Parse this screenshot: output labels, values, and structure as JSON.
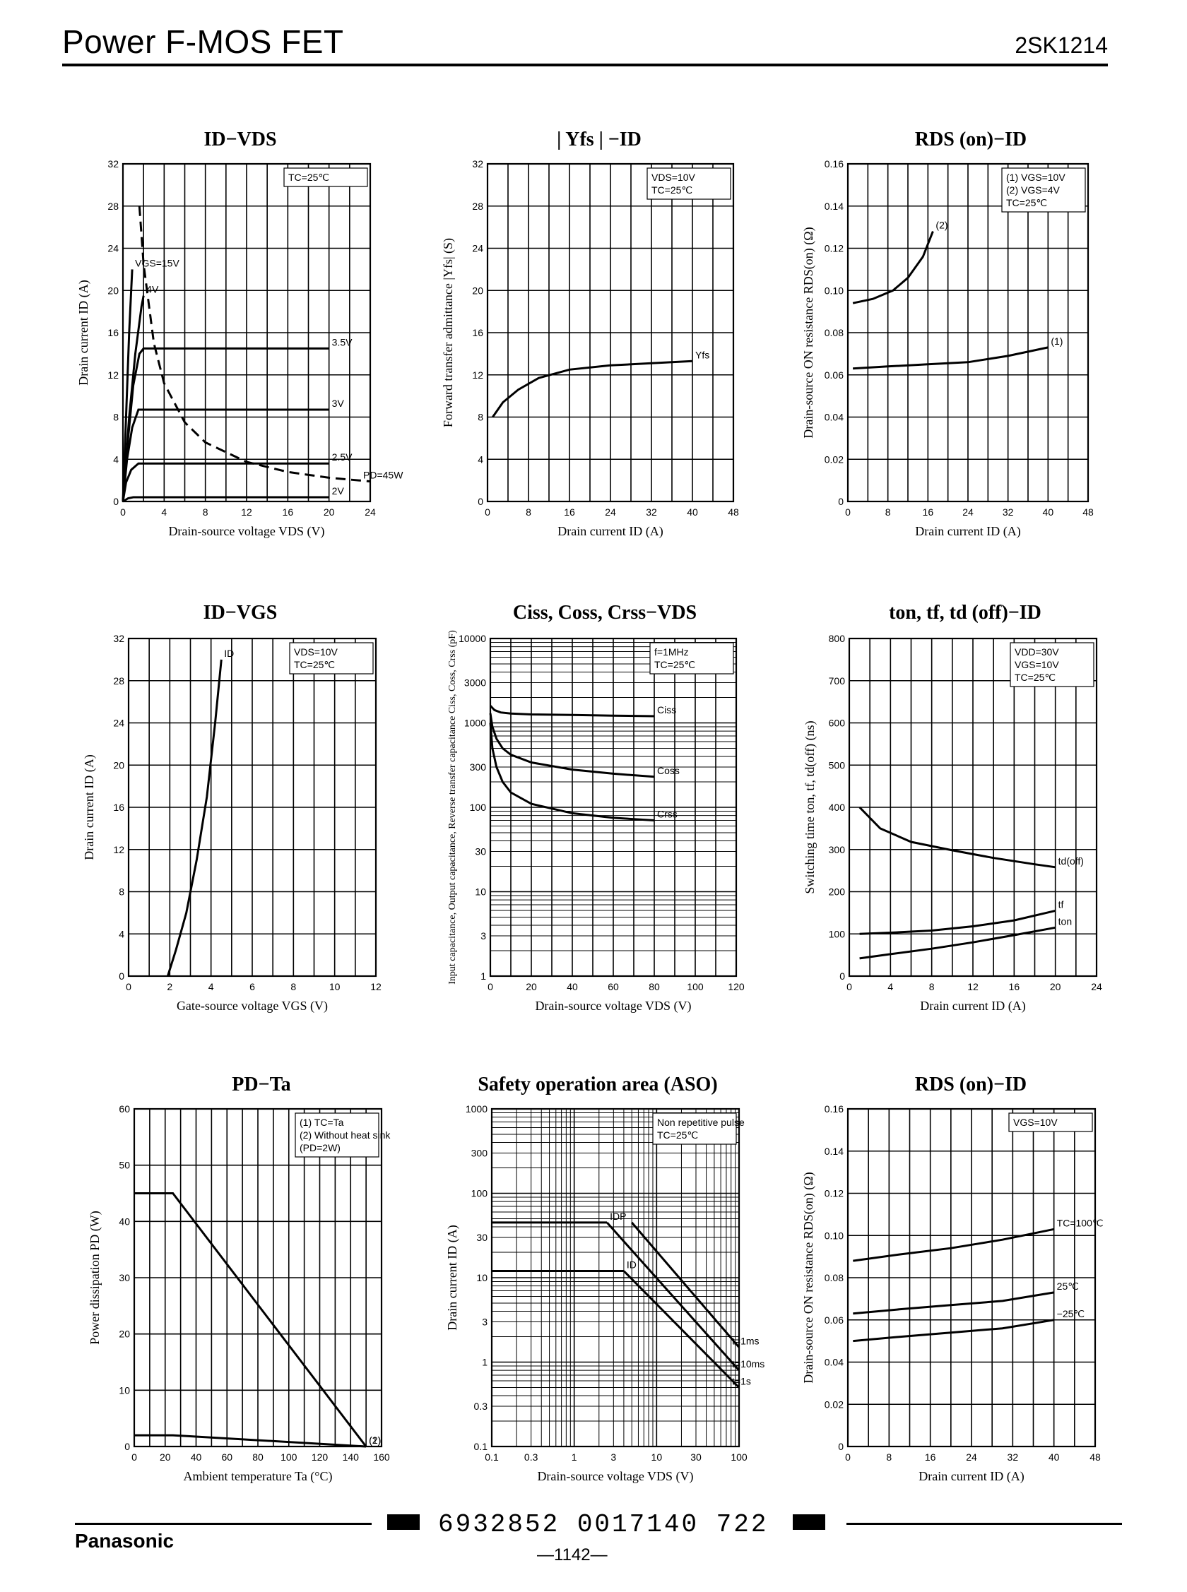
{
  "header": {
    "title": "Power F-MOS FET",
    "part_number": "2SK1214"
  },
  "footer": {
    "brand": "Panasonic",
    "code": "6932852 0017140 722",
    "page": "—1142—"
  },
  "chart_data": [
    {
      "id": "c1",
      "type": "line",
      "title": "ID−VDS",
      "xlabel": "Drain-source voltage VDS (V)",
      "ylabel": "Drain current ID (A)",
      "xlim": [
        0,
        24
      ],
      "ylim": [
        0,
        32
      ],
      "xticks": [
        "0",
        "4",
        "8",
        "12",
        "16",
        "20",
        "24"
      ],
      "yticks": [
        "0",
        "4",
        "8",
        "12",
        "16",
        "20",
        "24",
        "28",
        "32"
      ],
      "legend": [
        "TC=25℃"
      ],
      "series": [
        {
          "name": "VGS=15V",
          "x": [
            0,
            0.3,
            0.6,
            0.9
          ],
          "y": [
            0,
            8,
            16,
            22
          ]
        },
        {
          "name": "4V",
          "x": [
            0,
            0.6,
            1.2,
            1.8,
            2.0
          ],
          "y": [
            0,
            8,
            14,
            18.5,
            19.5
          ]
        },
        {
          "name": "3.5V",
          "x": [
            0,
            0.5,
            1,
            1.6,
            2,
            20
          ],
          "y": [
            0,
            6,
            11,
            14,
            14.5,
            14.5
          ]
        },
        {
          "name": "3V",
          "x": [
            0,
            0.4,
            0.9,
            1.5,
            20
          ],
          "y": [
            0,
            4,
            7,
            8.7,
            8.7
          ]
        },
        {
          "name": "2.5V",
          "x": [
            0,
            0.3,
            0.8,
            1.5,
            20
          ],
          "y": [
            0,
            1.8,
            3,
            3.6,
            3.6
          ]
        },
        {
          "name": "2V",
          "x": [
            0,
            0.5,
            1,
            20
          ],
          "y": [
            0,
            0.3,
            0.4,
            0.4
          ]
        },
        {
          "name": "PD=45W",
          "x": [
            1.6,
            2,
            3,
            4,
            6,
            8,
            12,
            16,
            20,
            24
          ],
          "y": [
            28,
            22.5,
            15,
            11.2,
            7.5,
            5.6,
            3.75,
            2.8,
            2.25,
            1.9
          ]
        }
      ]
    },
    {
      "id": "c2",
      "type": "line",
      "title": "| Yfs | −ID",
      "xlabel": "Drain current ID (A)",
      "ylabel": "Forward transfer admittance |Yfs| (S)",
      "xlim": [
        0,
        48
      ],
      "ylim": [
        0,
        32
      ],
      "xticks": [
        "0",
        "8",
        "16",
        "24",
        "32",
        "40",
        "48"
      ],
      "yticks": [
        "0",
        "4",
        "8",
        "12",
        "16",
        "20",
        "24",
        "28",
        "32"
      ],
      "legend": [
        "VDS=10V",
        "TC=25℃"
      ],
      "series": [
        {
          "name": "Yfs",
          "x": [
            1,
            3,
            6,
            10,
            16,
            24,
            32,
            40
          ],
          "y": [
            8,
            9.4,
            10.6,
            11.7,
            12.5,
            12.9,
            13.1,
            13.3
          ]
        }
      ]
    },
    {
      "id": "c3",
      "type": "line",
      "title": "RDS (on)−ID",
      "xlabel": "Drain current ID (A)",
      "ylabel": "Drain-source ON resistance RDS(on) (Ω)",
      "xlim": [
        0,
        48
      ],
      "ylim": [
        0,
        0.16
      ],
      "xticks": [
        "0",
        "8",
        "16",
        "24",
        "32",
        "40",
        "48"
      ],
      "yticks": [
        "0",
        "0.02",
        "0.04",
        "0.06",
        "0.08",
        "0.10",
        "0.12",
        "0.14",
        "0.16"
      ],
      "legend": [
        "(1) VGS=10V",
        "(2) VGS=4V",
        "TC=25℃"
      ],
      "series": [
        {
          "name": "(1)",
          "x": [
            1,
            8,
            16,
            24,
            32,
            40
          ],
          "y": [
            0.063,
            0.064,
            0.065,
            0.066,
            0.069,
            0.073
          ]
        },
        {
          "name": "(2)",
          "x": [
            1,
            5,
            9,
            12,
            15,
            17
          ],
          "y": [
            0.094,
            0.096,
            0.1,
            0.106,
            0.116,
            0.128
          ]
        }
      ]
    },
    {
      "id": "c4",
      "type": "line",
      "title": "ID−VGS",
      "xlabel": "Gate-source voltage VGS (V)",
      "ylabel": "Drain current ID (A)",
      "xlim": [
        0,
        12
      ],
      "ylim": [
        0,
        32
      ],
      "xticks": [
        "0",
        "2",
        "4",
        "6",
        "8",
        "10",
        "12"
      ],
      "yticks": [
        "0",
        "4",
        "8",
        "12",
        "16",
        "20",
        "24",
        "28",
        "32"
      ],
      "legend": [
        "VDS=10V",
        "TC=25℃"
      ],
      "series": [
        {
          "name": "ID",
          "x": [
            1.9,
            2.3,
            2.8,
            3.3,
            3.8,
            4.2,
            4.5
          ],
          "y": [
            0,
            2.5,
            6,
            11,
            17,
            24,
            30
          ]
        }
      ]
    },
    {
      "id": "c5",
      "type": "line",
      "title": "Ciss, Coss, Crss−VDS",
      "xlabel": "Drain-source voltage VDS (V)",
      "ylabel": "Input capacitance, Output capacitance, Reverse transfer capacitance Ciss, Coss, Crss (pF)",
      "xlim": [
        0,
        120
      ],
      "ylim": [
        1,
        10000
      ],
      "yscale": "log",
      "xticks": [
        "0",
        "20",
        "40",
        "60",
        "80",
        "100",
        "120"
      ],
      "yticks": [
        "1",
        "3",
        "10",
        "30",
        "100",
        "300",
        "1000",
        "3000",
        "10000"
      ],
      "legend": [
        "f=1MHz",
        "TC=25℃"
      ],
      "series": [
        {
          "name": "Ciss",
          "x": [
            0,
            2,
            5,
            10,
            20,
            40,
            60,
            80
          ],
          "y": [
            1600,
            1420,
            1330,
            1290,
            1260,
            1240,
            1220,
            1200
          ]
        },
        {
          "name": "Coss",
          "x": [
            0,
            1,
            3,
            6,
            10,
            20,
            40,
            60,
            80
          ],
          "y": [
            1300,
            900,
            650,
            500,
            420,
            340,
            280,
            250,
            230
          ]
        },
        {
          "name": "Crss",
          "x": [
            0,
            1,
            3,
            6,
            10,
            20,
            40,
            60,
            80
          ],
          "y": [
            1000,
            500,
            300,
            200,
            150,
            110,
            85,
            75,
            70
          ]
        }
      ]
    },
    {
      "id": "c6",
      "type": "line",
      "title": "ton, tf, td (off)−ID",
      "xlabel": "Drain current ID (A)",
      "ylabel": "Switching time ton, tf, td(off) (ns)",
      "xlim": [
        0,
        24
      ],
      "ylim": [
        0,
        800
      ],
      "xticks": [
        "0",
        "4",
        "8",
        "12",
        "16",
        "20",
        "24"
      ],
      "yticks": [
        "0",
        "100",
        "200",
        "300",
        "400",
        "500",
        "600",
        "700",
        "800"
      ],
      "legend": [
        "VDD=30V",
        "VGS=10V",
        "TC=25℃"
      ],
      "series": [
        {
          "name": "td(off)",
          "x": [
            1,
            3,
            6,
            10,
            14,
            18,
            20
          ],
          "y": [
            400,
            350,
            318,
            298,
            280,
            265,
            258
          ]
        },
        {
          "name": "tf",
          "x": [
            1,
            4,
            8,
            12,
            16,
            20
          ],
          "y": [
            100,
            103,
            108,
            118,
            132,
            155
          ]
        },
        {
          "name": "ton",
          "x": [
            1,
            4,
            8,
            12,
            16,
            20
          ],
          "y": [
            42,
            52,
            65,
            80,
            97,
            115
          ]
        }
      ]
    },
    {
      "id": "c7",
      "type": "line",
      "title": "PD−Ta",
      "xlabel": "Ambient temperature Ta (°C)",
      "ylabel": "Power dissipation PD (W)",
      "xlim": [
        0,
        160
      ],
      "ylim": [
        0,
        60
      ],
      "xticks": [
        "0",
        "20",
        "40",
        "60",
        "80",
        "100",
        "120",
        "140",
        "160"
      ],
      "yticks": [
        "0",
        "10",
        "20",
        "30",
        "40",
        "50",
        "60"
      ],
      "legend": [
        "(1) TC=Ta",
        "(2) Without heat sink",
        "(PD=2W)"
      ],
      "series": [
        {
          "name": "(1)",
          "x": [
            0,
            25,
            150
          ],
          "y": [
            45,
            45,
            0
          ]
        },
        {
          "name": "(2)",
          "x": [
            0,
            25,
            150
          ],
          "y": [
            2,
            2,
            0
          ]
        }
      ]
    },
    {
      "id": "c8",
      "type": "line",
      "title": "Safety operation area (ASO)",
      "xlabel": "Drain-source voltage VDS (V)",
      "ylabel": "Drain current ID (A)",
      "xlim": [
        0.1,
        100
      ],
      "ylim": [
        0.1,
        1000
      ],
      "xscale": "log",
      "yscale": "log",
      "xticks": [
        "0.1",
        "0.3",
        "1",
        "3",
        "10",
        "30",
        "100"
      ],
      "yticks": [
        "0.1",
        "0.3",
        "1",
        "3",
        "10",
        "30",
        "100",
        "300",
        "1000"
      ],
      "legend": [
        "Non repetitive pulse",
        "TC=25℃"
      ],
      "annotations": [
        "IDP",
        "ID",
        "t=1ms",
        "t=10ms",
        "t=1s"
      ],
      "series": [
        {
          "name": "IDP",
          "x": [
            0.1,
            2.5
          ],
          "y": [
            45,
            45
          ]
        },
        {
          "name": "ID",
          "x": [
            0.1,
            4
          ],
          "y": [
            12,
            12
          ]
        },
        {
          "name": "t=1ms",
          "x": [
            5,
            100
          ],
          "y": [
            45,
            1.5
          ]
        },
        {
          "name": "t=10ms",
          "x": [
            2.5,
            100
          ],
          "y": [
            45,
            0.8
          ]
        },
        {
          "name": "t=1s",
          "x": [
            4,
            100
          ],
          "y": [
            12,
            0.5
          ]
        }
      ]
    },
    {
      "id": "c9",
      "type": "line",
      "title": "RDS (on)−ID",
      "xlabel": "Drain current ID (A)",
      "ylabel": "Drain-source ON resistance RDS(on) (Ω)",
      "xlim": [
        0,
        48
      ],
      "ylim": [
        0,
        0.16
      ],
      "xticks": [
        "0",
        "8",
        "16",
        "24",
        "32",
        "40",
        "48"
      ],
      "yticks": [
        "0",
        "0.02",
        "0.04",
        "0.06",
        "0.08",
        "0.10",
        "0.12",
        "0.14",
        "0.16"
      ],
      "legend": [
        "VGS=10V"
      ],
      "series": [
        {
          "name": "TC=100℃",
          "x": [
            1,
            10,
            20,
            30,
            40
          ],
          "y": [
            0.088,
            0.091,
            0.094,
            0.098,
            0.103
          ]
        },
        {
          "name": "25℃",
          "x": [
            1,
            10,
            20,
            30,
            40
          ],
          "y": [
            0.063,
            0.065,
            0.067,
            0.069,
            0.073
          ]
        },
        {
          "name": "−25℃",
          "x": [
            1,
            10,
            20,
            30,
            40
          ],
          "y": [
            0.05,
            0.052,
            0.054,
            0.056,
            0.06
          ]
        }
      ]
    }
  ]
}
